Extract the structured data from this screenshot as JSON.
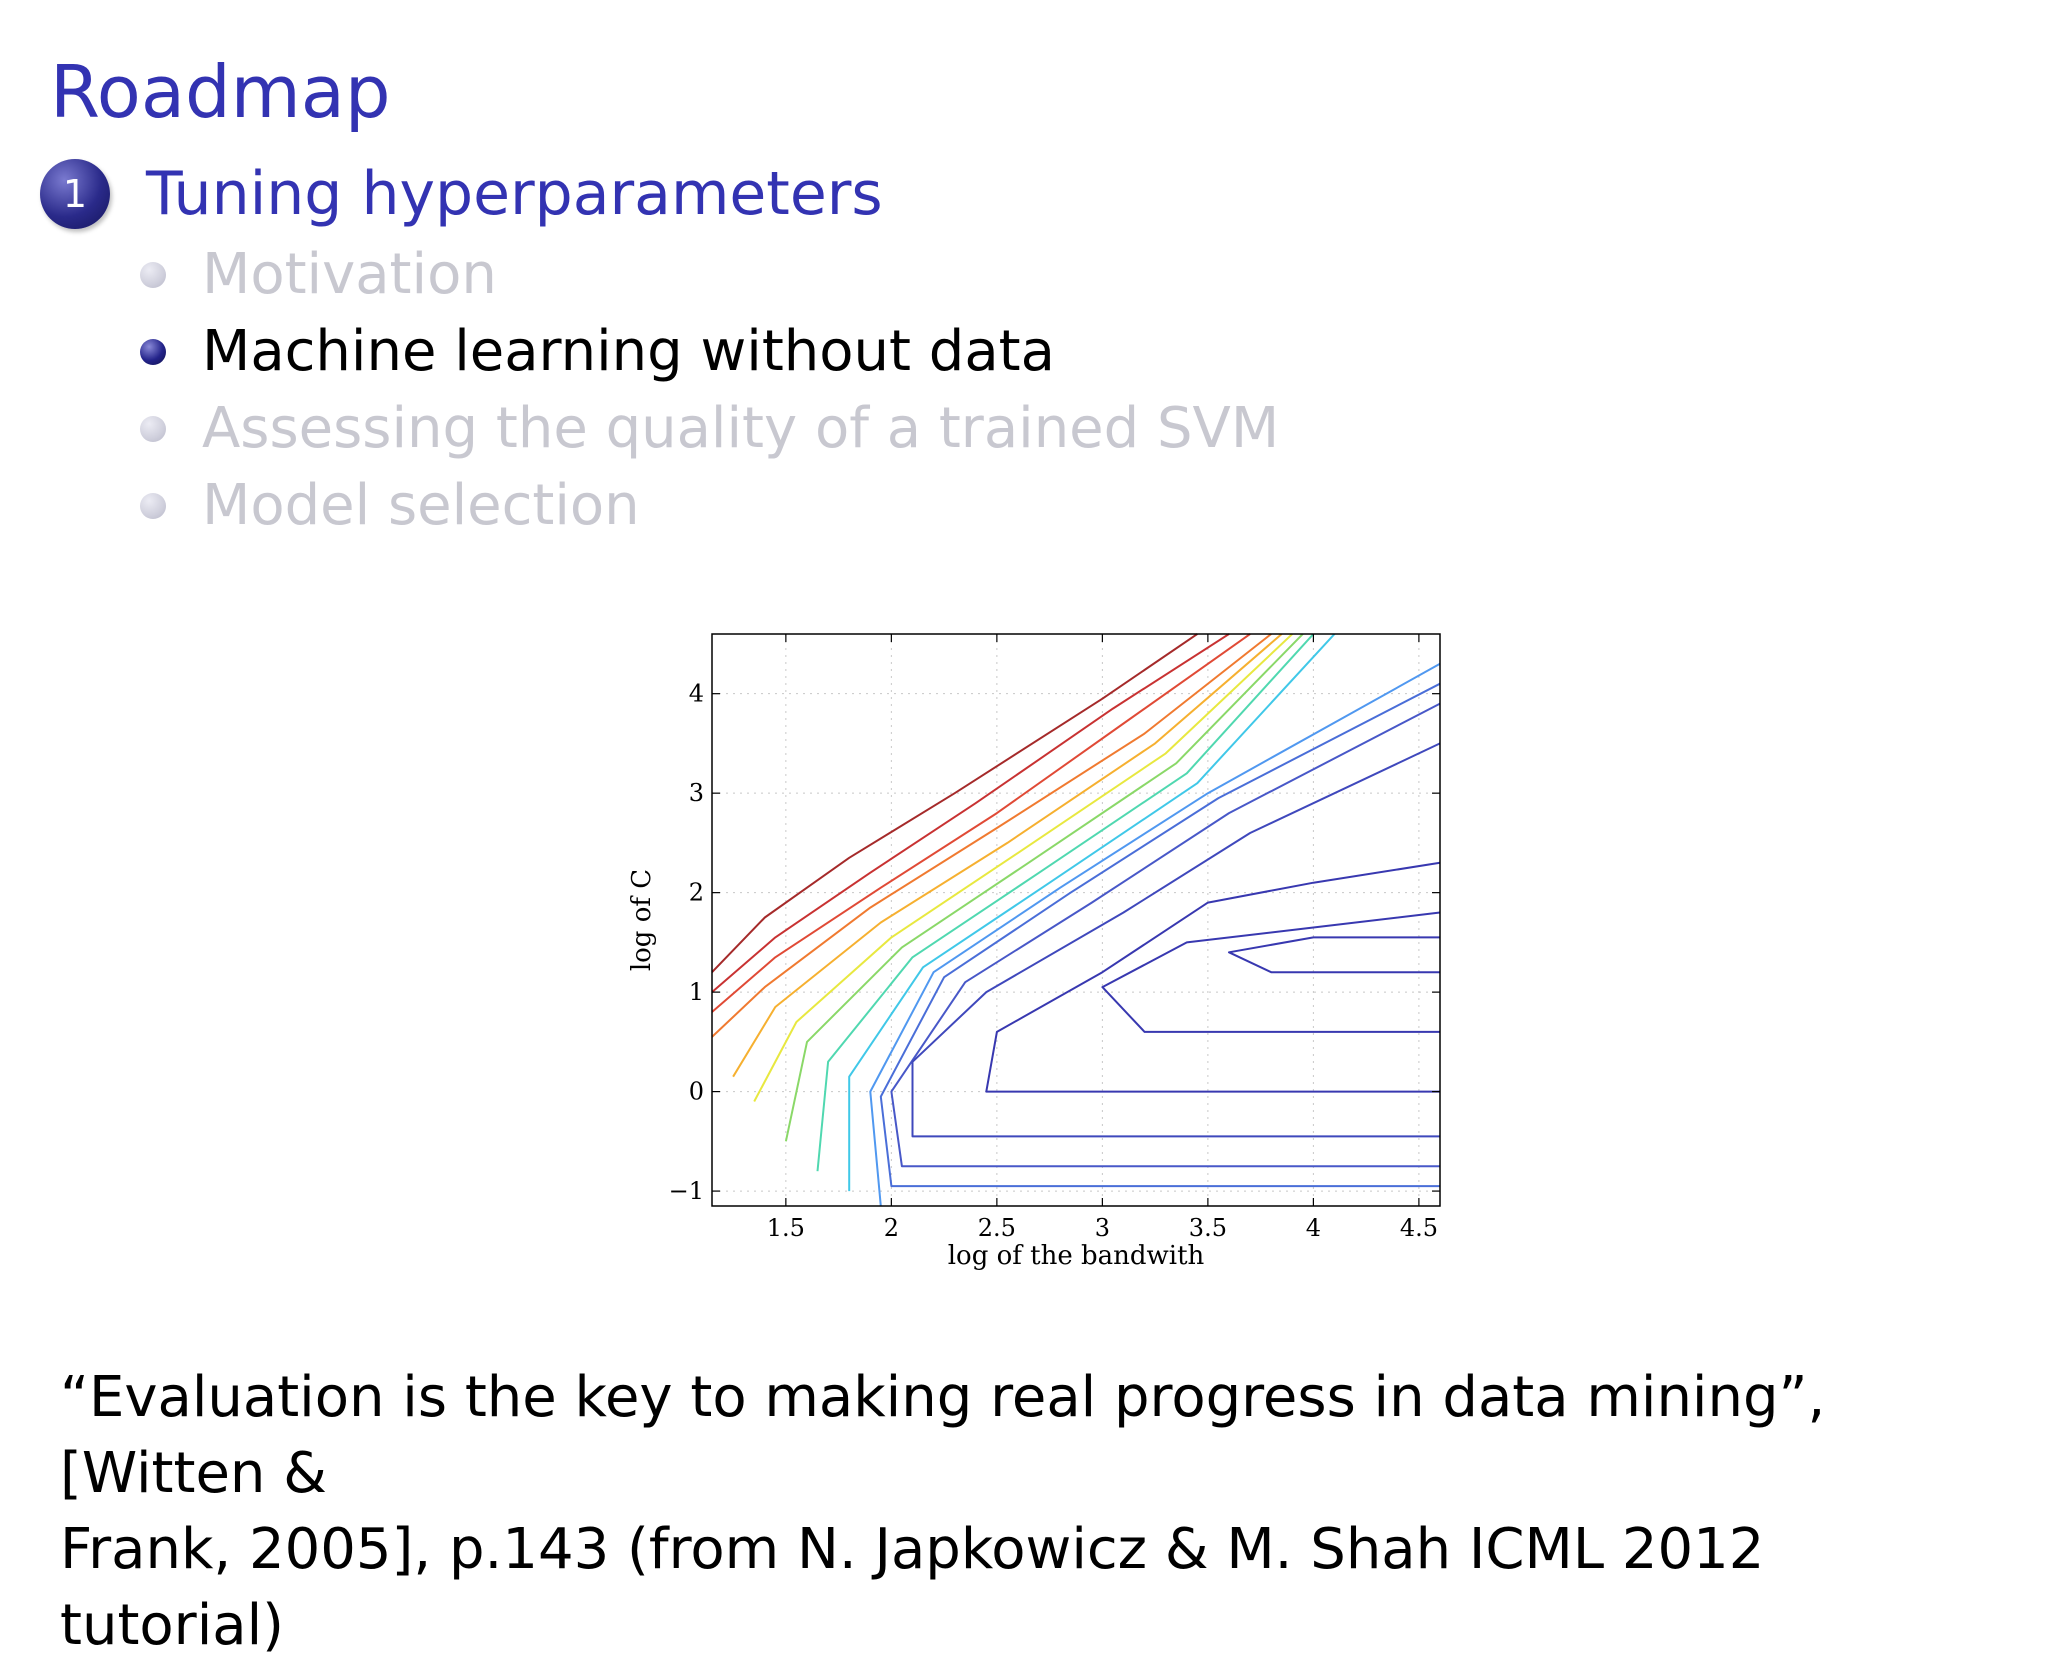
{
  "slide": {
    "title": "Roadmap",
    "section": {
      "number": "1",
      "label": "Tuning hyperparameters"
    },
    "items": [
      {
        "label": "Motivation",
        "state": "inactive"
      },
      {
        "label": "Machine learning without data",
        "state": "active"
      },
      {
        "label": "Assessing the quality of a trained SVM",
        "state": "inactive"
      },
      {
        "label": "Model selection",
        "state": "inactive"
      }
    ],
    "quote": {
      "line1": "“Evaluation is the key to making real progress in data mining”, [Witten &",
      "line2": "Frank, 2005], p.143 (from N. Japkowicz & M. Shah ICML 2012 tutorial)"
    }
  },
  "chart_data": {
    "type": "contour",
    "xlabel": "log of the bandwith",
    "ylabel": "log of C",
    "xlim": [
      1.15,
      4.6
    ],
    "ylim": [
      -1.15,
      4.6
    ],
    "xticks": [
      "1.5",
      "2",
      "2.5",
      "3",
      "3.5",
      "4",
      "4.5"
    ],
    "xtick_values": [
      1.5,
      2,
      2.5,
      3,
      3.5,
      4,
      4.5
    ],
    "yticks": [
      "−1",
      "0",
      "1",
      "2",
      "3",
      "4"
    ],
    "ytick_values": [
      -1,
      0,
      1,
      2,
      3,
      4
    ],
    "grid": true,
    "colormap": [
      "#b22222",
      "#e0403a",
      "#f08030",
      "#f4c030",
      "#f0f040",
      "#a8e060",
      "#60d8a0",
      "#40d0e0",
      "#50b0f0",
      "#5080e0",
      "#4858c8",
      "#3838b0"
    ],
    "contours": [
      {
        "level": 1,
        "color": "#a52a2a",
        "points": [
          [
            1.15,
            1.2
          ],
          [
            1.4,
            1.75
          ],
          [
            1.8,
            2.35
          ],
          [
            2.3,
            3.0
          ],
          [
            3.0,
            3.95
          ],
          [
            3.45,
            4.6
          ]
        ]
      },
      {
        "level": 2,
        "color": "#c83232",
        "points": [
          [
            1.15,
            1.0
          ],
          [
            1.45,
            1.55
          ],
          [
            1.9,
            2.2
          ],
          [
            2.4,
            2.9
          ],
          [
            3.05,
            3.85
          ],
          [
            3.6,
            4.6
          ]
        ]
      },
      {
        "level": 3,
        "color": "#e04a36",
        "points": [
          [
            1.15,
            0.8
          ],
          [
            1.45,
            1.35
          ],
          [
            1.95,
            2.05
          ],
          [
            2.5,
            2.8
          ],
          [
            3.1,
            3.7
          ],
          [
            3.7,
            4.6
          ]
        ]
      },
      {
        "level": 4,
        "color": "#f07a30",
        "points": [
          [
            1.15,
            0.55
          ],
          [
            1.4,
            1.05
          ],
          [
            1.9,
            1.85
          ],
          [
            2.5,
            2.65
          ],
          [
            3.2,
            3.6
          ],
          [
            3.8,
            4.6
          ]
        ]
      },
      {
        "level": 5,
        "color": "#f6b030",
        "points": [
          [
            1.25,
            0.15
          ],
          [
            1.45,
            0.85
          ],
          [
            1.95,
            1.7
          ],
          [
            2.55,
            2.5
          ],
          [
            3.25,
            3.5
          ],
          [
            3.85,
            4.6
          ]
        ]
      },
      {
        "level": 6,
        "color": "#e8e840",
        "points": [
          [
            1.35,
            -0.1
          ],
          [
            1.55,
            0.7
          ],
          [
            2.0,
            1.55
          ],
          [
            2.6,
            2.4
          ],
          [
            3.3,
            3.4
          ],
          [
            3.9,
            4.6
          ]
        ]
      },
      {
        "level": 7,
        "color": "#8ad868",
        "points": [
          [
            1.5,
            -0.5
          ],
          [
            1.6,
            0.5
          ],
          [
            2.05,
            1.45
          ],
          [
            2.65,
            2.3
          ],
          [
            3.35,
            3.3
          ],
          [
            3.95,
            4.6
          ]
        ]
      },
      {
        "level": 8,
        "color": "#50d8b0",
        "points": [
          [
            1.65,
            -0.8
          ],
          [
            1.7,
            0.3
          ],
          [
            2.1,
            1.35
          ],
          [
            2.7,
            2.2
          ],
          [
            3.4,
            3.2
          ],
          [
            4.0,
            4.6
          ]
        ]
      },
      {
        "level": 9,
        "color": "#40c8e8",
        "points": [
          [
            1.8,
            -1.0
          ],
          [
            1.8,
            0.15
          ],
          [
            2.15,
            1.25
          ],
          [
            2.75,
            2.1
          ],
          [
            3.45,
            3.1
          ],
          [
            4.1,
            4.6
          ]
        ]
      },
      {
        "level": 10,
        "color": "#5098f0",
        "points": [
          [
            1.95,
            -1.15
          ],
          [
            1.9,
            0.0
          ],
          [
            2.2,
            1.2
          ],
          [
            2.8,
            2.05
          ],
          [
            3.5,
            3.0
          ],
          [
            4.6,
            4.3
          ]
        ]
      },
      {
        "level": 11,
        "color": "#4a6ed8",
        "points": [
          [
            4.6,
            -0.95
          ],
          [
            2.0,
            -0.95
          ],
          [
            1.95,
            -0.05
          ],
          [
            2.25,
            1.15
          ],
          [
            2.85,
            2.0
          ],
          [
            3.55,
            2.95
          ],
          [
            4.6,
            4.1
          ]
        ]
      },
      {
        "level": 12,
        "color": "#4858c8",
        "points": [
          [
            4.6,
            -0.75
          ],
          [
            2.05,
            -0.75
          ],
          [
            2.0,
            0.0
          ],
          [
            2.35,
            1.1
          ],
          [
            2.95,
            1.9
          ],
          [
            3.6,
            2.8
          ],
          [
            4.6,
            3.9
          ]
        ]
      },
      {
        "level": 13,
        "color": "#3f48bc",
        "points": [
          [
            4.6,
            -0.45
          ],
          [
            2.1,
            -0.45
          ],
          [
            2.1,
            0.3
          ],
          [
            2.45,
            1.0
          ],
          [
            3.1,
            1.8
          ],
          [
            3.7,
            2.6
          ],
          [
            4.6,
            3.5
          ]
        ]
      },
      {
        "level": 14,
        "color": "#3838b0",
        "points": [
          [
            4.6,
            0.0
          ],
          [
            2.45,
            0.0
          ],
          [
            2.5,
            0.6
          ],
          [
            3.0,
            1.2
          ],
          [
            3.5,
            1.9
          ],
          [
            4.0,
            2.1
          ],
          [
            4.6,
            2.3
          ]
        ]
      },
      {
        "level": 15,
        "color": "#3838b0",
        "points": [
          [
            4.6,
            0.6
          ],
          [
            3.2,
            0.6
          ],
          [
            3.0,
            1.05
          ],
          [
            3.4,
            1.5
          ],
          [
            4.0,
            1.65
          ],
          [
            4.6,
            1.8
          ]
        ]
      },
      {
        "level": 16,
        "color": "#3838b0",
        "points": [
          [
            4.6,
            1.2
          ],
          [
            3.8,
            1.2
          ],
          [
            3.6,
            1.4
          ],
          [
            4.0,
            1.55
          ],
          [
            4.6,
            1.55
          ]
        ]
      }
    ]
  }
}
